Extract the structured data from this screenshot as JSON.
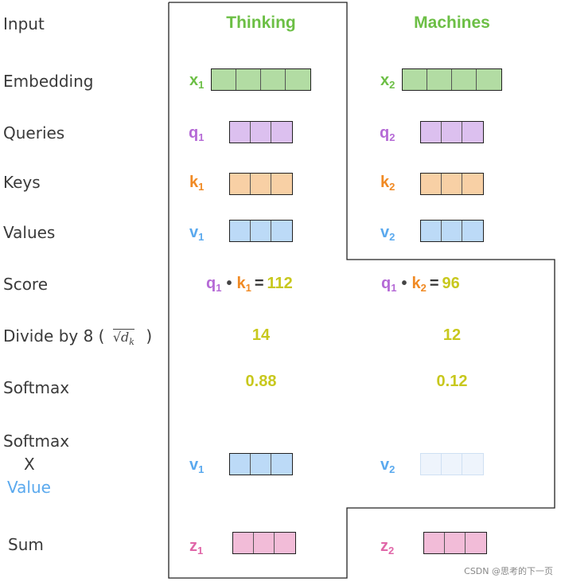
{
  "rows": {
    "input": "Input",
    "embedding": "Embedding",
    "queries": "Queries",
    "keys": "Keys",
    "values": "Values",
    "score": "Score",
    "divide_prefix": "Divide by 8 (",
    "divide_sqrt": "√d",
    "divide_sub": "k",
    "divide_suffix": ")",
    "softmax": "Softmax",
    "softmax_x_1": "Softmax",
    "softmax_x_2": "X",
    "softmax_x_3": "Value",
    "sum": "Sum"
  },
  "words": {
    "w1": "Thinking",
    "w2": "Machines"
  },
  "symbols": {
    "x1": "x",
    "x2": "x",
    "q1": "q",
    "q2": "q",
    "k1": "k",
    "k2": "k",
    "v1": "v",
    "v2": "v",
    "z1": "z",
    "z2": "z",
    "sub1": "1",
    "sub2": "2"
  },
  "score": {
    "s1_value": "112",
    "s2_value": "96",
    "dot": "•",
    "eq": "="
  },
  "divided": {
    "d1": "14",
    "d2": "12"
  },
  "softmax": {
    "s1": "0.88",
    "s2": "0.12"
  },
  "colors": {
    "green": "#6cbf45",
    "purple": "#b56ad6",
    "orange": "#f08a24",
    "blue": "#5aa9ee",
    "pink": "#e066a8",
    "yellow": "#c8c81e",
    "embed_fill": "#b2dca3",
    "query_fill": "#dcc0ef",
    "key_fill": "#f8d0a5",
    "value_fill": "#bcdaf7",
    "value_faded_fill": "#eef4fc",
    "sum_fill": "#f2bcd8"
  },
  "watermark": "CSDN @思考的下一页"
}
